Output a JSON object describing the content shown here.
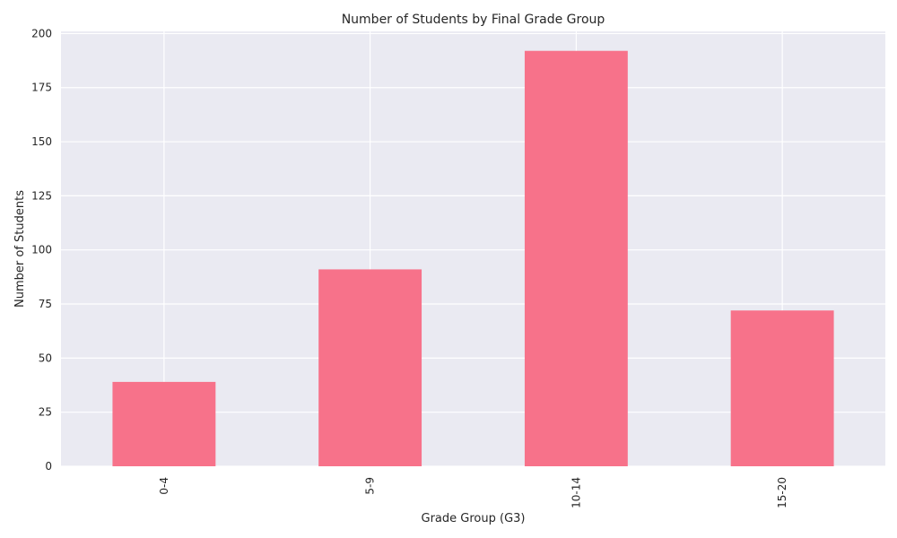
{
  "chart_data": {
    "type": "bar",
    "title": "Number of Students by Final Grade Group",
    "xlabel": "Grade Group (G3)",
    "ylabel": "Number of Students",
    "categories": [
      "0-4",
      "5-9",
      "10-14",
      "15-20"
    ],
    "values": [
      39,
      91,
      192,
      72
    ],
    "ylim": [
      0,
      201
    ],
    "yticks": [
      0,
      25,
      50,
      75,
      100,
      125,
      150,
      175,
      200
    ],
    "grid": true,
    "legend": "none",
    "bar_color": "#f7728a",
    "plot_background": "#eaeaf2",
    "grid_color": "#ffffff",
    "x_tick_rotation": "vertical"
  }
}
